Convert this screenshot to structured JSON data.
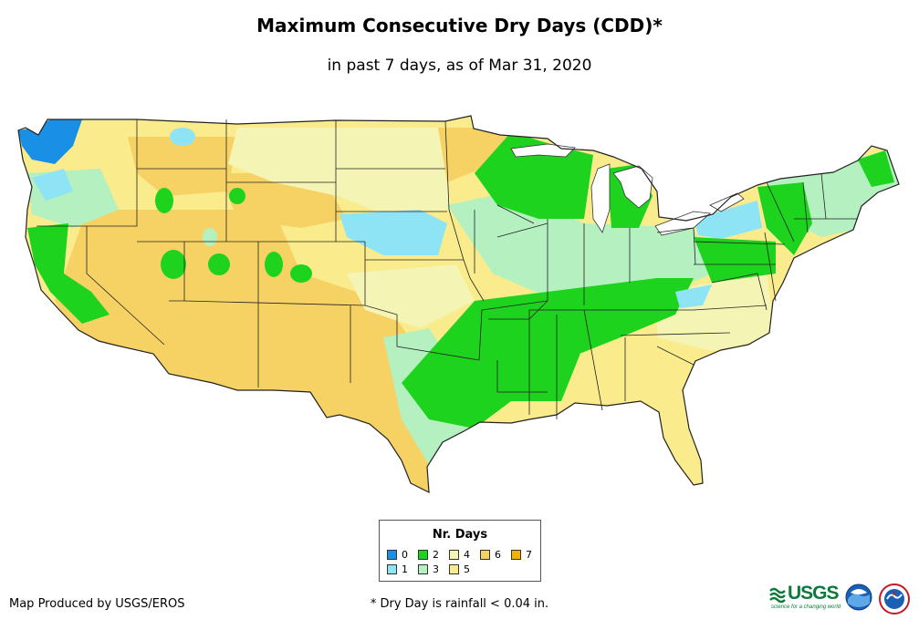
{
  "title": "Maximum Consecutive Dry Days (CDD)*",
  "subtitle": "in past 7 days, as of Mar 31, 2020",
  "legend": {
    "title": "Nr. Days",
    "items": [
      {
        "label": "0",
        "color": "#1a8fe6"
      },
      {
        "label": "1",
        "color": "#8ee4f5"
      },
      {
        "label": "2",
        "color": "#1ed31e"
      },
      {
        "label": "3",
        "color": "#b4f0c0"
      },
      {
        "label": "4",
        "color": "#f4f4b4"
      },
      {
        "label": "5",
        "color": "#faeb8c"
      },
      {
        "label": "6",
        "color": "#f6d264"
      },
      {
        "label": "7",
        "color": "#f0b400"
      }
    ]
  },
  "credit": "Map Produced by USGS/EROS",
  "footnote": "* Dry Day is rainfall < 0.04 in.",
  "logos": {
    "usgs_word": "USGS",
    "usgs_tagline": "science for a changing world"
  }
}
